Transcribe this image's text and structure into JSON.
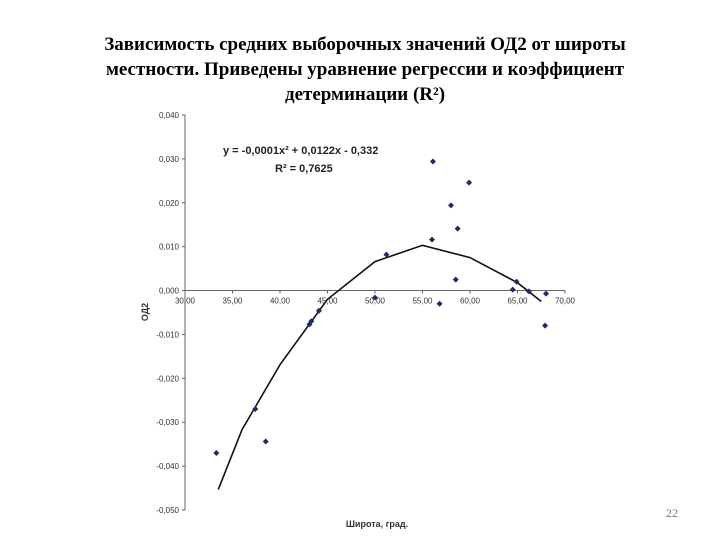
{
  "chart_data": {
    "type": "scatter",
    "title_lines": [
      "Зависимость средних выборочных значений ОД2 от широты",
      "местности. Приведены уравнение регрессии и коэффициент",
      "детерминации (R²)"
    ],
    "xlabel": "Широта, град.",
    "ylabel": "ОД2",
    "annotations": [
      "y = -0,0001x² + 0,0122x - 0,332",
      "R² = 0,7625"
    ],
    "page_number": "22",
    "color": "#1f2a6e",
    "x": [
      33.3,
      37.4,
      38.5,
      43.1,
      43.3,
      44.1,
      50.0,
      51.2,
      56.0,
      56.1,
      56.8,
      58.0,
      58.5,
      58.7,
      59.9,
      64.5,
      64.9,
      66.2,
      67.9,
      68.0
    ],
    "values": [
      -0.037,
      -0.027,
      -0.0344,
      -0.0077,
      -0.007,
      -0.0046,
      -0.0016,
      0.0082,
      0.0116,
      0.0294,
      -0.003,
      0.0194,
      0.0025,
      0.0141,
      0.0246,
      0.0002,
      0.002,
      -0.0002,
      -0.008,
      -0.0007
    ],
    "trend": {
      "x": [
        33.5,
        36,
        40,
        45,
        50,
        55,
        60,
        65,
        67.5
      ],
      "values": [
        -0.0453,
        -0.0317,
        -0.0169,
        -0.002,
        0.0066,
        0.0103,
        0.0075,
        0.0018,
        -0.0025
      ]
    },
    "xlim": [
      30,
      70
    ],
    "xticks": [
      {
        "value": 30,
        "label": "30,00"
      },
      {
        "value": 35,
        "label": "35,00"
      },
      {
        "value": 40,
        "label": "40,00"
      },
      {
        "value": 45,
        "label": "45,00"
      },
      {
        "value": 50,
        "label": "50,00"
      },
      {
        "value": 55,
        "label": "55,00"
      },
      {
        "value": 60,
        "label": "60,00"
      },
      {
        "value": 65,
        "label": "65,00"
      },
      {
        "value": 70,
        "label": "70,00"
      }
    ],
    "ylim": [
      -0.05,
      0.04
    ],
    "yticks": [
      {
        "value": 0.04,
        "label": "0,040"
      },
      {
        "value": 0.03,
        "label": "0,030"
      },
      {
        "value": 0.02,
        "label": "0,020"
      },
      {
        "value": 0.01,
        "label": "0,010"
      },
      {
        "value": 0,
        "label": "0,000"
      },
      {
        "value": -0.01,
        "label": "-0,010"
      },
      {
        "value": -0.02,
        "label": "-0,020"
      },
      {
        "value": -0.03,
        "label": "-0,030"
      },
      {
        "value": -0.04,
        "label": "-0,040"
      },
      {
        "value": -0.05,
        "label": "-0,050"
      }
    ]
  }
}
